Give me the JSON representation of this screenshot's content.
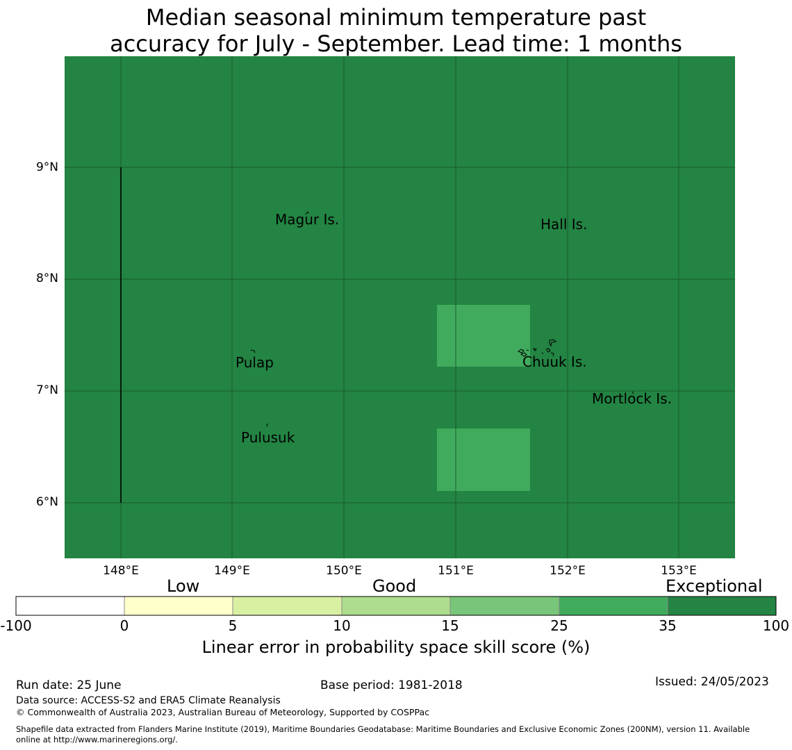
{
  "title": {
    "line1": "Median seasonal minimum temperature past",
    "line2": "accuracy for July - September. Lead time: 1 months"
  },
  "map": {
    "background_color": "#238443",
    "patch_color": "#41ab5d",
    "lon_labels": [
      "148°E",
      "149°E",
      "150°E",
      "151°E",
      "152°E",
      "153°E"
    ],
    "lat_labels": [
      "9°N",
      "8°N",
      "7°N",
      "6°N"
    ],
    "places": [
      {
        "id": "magur",
        "name": "Magur Is."
      },
      {
        "id": "hall",
        "name": "Hall Is."
      },
      {
        "id": "pulap",
        "name": "Pulap"
      },
      {
        "id": "chuuk",
        "name": "Chuuk Is."
      },
      {
        "id": "mortlock",
        "name": "Mortlock Is."
      },
      {
        "id": "pulusuk",
        "name": "Pulusuk"
      }
    ]
  },
  "colorbar": {
    "categories": [
      "Low",
      "Good",
      "Exceptional"
    ],
    "ticks": [
      "-100",
      "0",
      "5",
      "10",
      "15",
      "25",
      "35",
      "100"
    ],
    "colors": [
      "#ffffff",
      "#ffffcc",
      "#d9f0a3",
      "#addd8e",
      "#78c679",
      "#41ab5d",
      "#238443"
    ],
    "label": "Linear error in probability space skill score (%)"
  },
  "footer": {
    "run_date": "Run date: 25 June",
    "base_period": "Base period: 1981-2018",
    "issued": "Issued: 24/05/2023",
    "data_source": "Data source: ACCESS-S2 and ERA5 Climate Reanalysis",
    "copyright": "© Commonwealth of Australia 2023, Australian Bureau of Meteorology, Supported by COSPPac",
    "shapefile_line1": "Shapefile data extracted from Flanders Marine Institute (2019), Maritime Boundaries Geodatabase: Maritime Boundaries and Exclusive Economic Zones (200NM), version 11. Available",
    "shapefile_line2": "online at http://www.marineregions.org/."
  }
}
